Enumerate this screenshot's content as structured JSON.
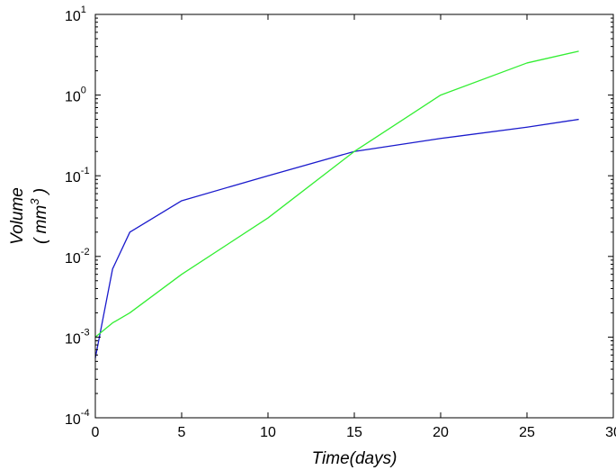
{
  "chart_data": {
    "type": "line",
    "title": "",
    "xlabel": "Time(days)",
    "ylabel_line1": "Volume",
    "ylabel_line2_open": "( mm",
    "ylabel_line2_exp": "3",
    "ylabel_line2_close": " )",
    "xscale": "linear",
    "yscale": "log",
    "xlim": [
      0,
      30
    ],
    "ylim": [
      0.0001,
      10
    ],
    "xticks": [
      0,
      5,
      10,
      15,
      20,
      25,
      30
    ],
    "yticks": [
      {
        "value": 0.0001,
        "base": "10",
        "exp": "-4"
      },
      {
        "value": 0.001,
        "base": "10",
        "exp": "-3"
      },
      {
        "value": 0.01,
        "base": "10",
        "exp": "-2"
      },
      {
        "value": 0.1,
        "base": "10",
        "exp": "-1"
      },
      {
        "value": 1,
        "base": "10",
        "exp": "0"
      },
      {
        "value": 10,
        "base": "10",
        "exp": "1"
      }
    ],
    "grid": false,
    "legend": "none",
    "series": [
      {
        "color": "#1a1acc",
        "x": [
          0,
          1,
          2,
          5,
          10,
          15,
          20,
          25,
          28
        ],
        "y": [
          0.00055,
          0.007,
          0.02,
          0.049,
          0.1,
          0.2,
          0.29,
          0.4,
          0.5
        ]
      },
      {
        "color": "#33ee33",
        "x": [
          0,
          1,
          2,
          5,
          10,
          15,
          20,
          25,
          28
        ],
        "y": [
          0.001,
          0.0015,
          0.002,
          0.006,
          0.03,
          0.2,
          1.0,
          2.5,
          3.5
        ]
      }
    ]
  }
}
